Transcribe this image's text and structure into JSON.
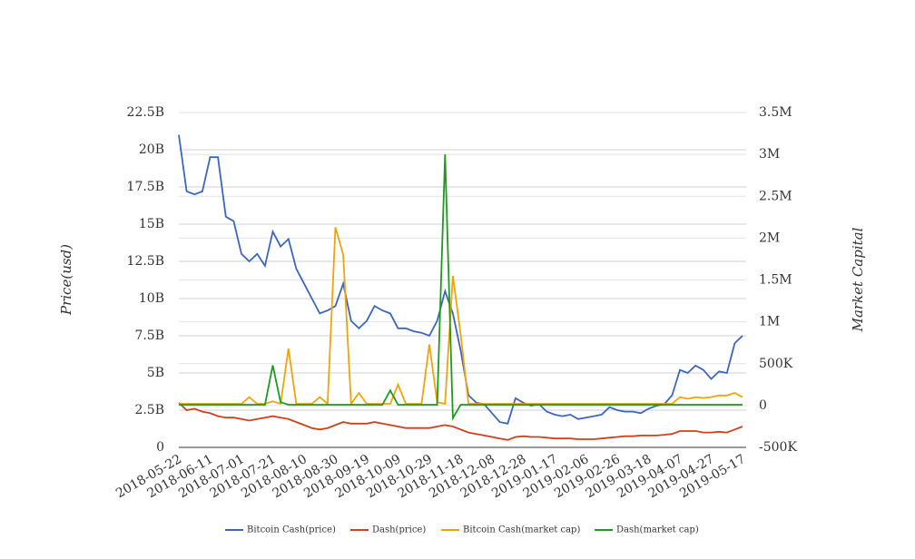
{
  "chart_data": {
    "type": "line",
    "y_label": "Price(usd)",
    "y2_label": "Market Capital",
    "x": [
      "2018-05-22",
      "2018-05-27",
      "2018-06-01",
      "2018-06-06",
      "2018-06-11",
      "2018-06-16",
      "2018-06-21",
      "2018-06-26",
      "2018-07-01",
      "2018-07-06",
      "2018-07-11",
      "2018-07-16",
      "2018-07-21",
      "2018-07-26",
      "2018-07-31",
      "2018-08-05",
      "2018-08-10",
      "2018-08-15",
      "2018-08-20",
      "2018-08-25",
      "2018-08-30",
      "2018-09-04",
      "2018-09-09",
      "2018-09-14",
      "2018-09-19",
      "2018-09-24",
      "2018-09-29",
      "2018-10-04",
      "2018-10-09",
      "2018-10-14",
      "2018-10-19",
      "2018-10-24",
      "2018-10-29",
      "2018-11-03",
      "2018-11-08",
      "2018-11-13",
      "2018-11-18",
      "2018-11-23",
      "2018-11-28",
      "2018-12-03",
      "2018-12-08",
      "2018-12-13",
      "2018-12-18",
      "2018-12-23",
      "2018-12-28",
      "2019-01-02",
      "2019-01-07",
      "2019-01-12",
      "2019-01-17",
      "2019-01-22",
      "2019-01-27",
      "2019-02-01",
      "2019-02-06",
      "2019-02-11",
      "2019-02-16",
      "2019-02-21",
      "2019-02-26",
      "2019-03-03",
      "2019-03-08",
      "2019-03-13",
      "2019-03-18",
      "2019-03-23",
      "2019-03-28",
      "2019-04-02",
      "2019-04-07",
      "2019-04-12",
      "2019-04-17",
      "2019-04-22",
      "2019-04-27",
      "2019-05-02",
      "2019-05-07",
      "2019-05-12",
      "2019-05-17"
    ],
    "xticks": [
      "2018-05-22",
      "2018-06-11",
      "2018-07-01",
      "2018-07-21",
      "2018-08-10",
      "2018-08-30",
      "2018-09-19",
      "2018-10-09",
      "2018-10-29",
      "2018-11-18",
      "2018-12-08",
      "2018-12-28",
      "2019-01-17",
      "2019-02-06",
      "2019-02-26",
      "2019-03-18",
      "2019-04-07",
      "2019-04-27",
      "2019-05-17"
    ],
    "ylim": [
      0,
      22500000000
    ],
    "yticks": [
      0,
      {
        "value": 2500000000,
        "label": "2.5B"
      },
      {
        "value": 5000000000,
        "label": "5B"
      },
      {
        "value": 7500000000,
        "label": "7.5B"
      },
      {
        "value": 10000000000,
        "label": "10B"
      },
      {
        "value": 12500000000,
        "label": "12.5B"
      },
      {
        "value": 15000000000,
        "label": "15B"
      },
      {
        "value": 17500000000,
        "label": "17.5B"
      },
      {
        "value": 20000000000,
        "label": "20B"
      },
      {
        "value": 22500000000,
        "label": "22.5B"
      }
    ],
    "y2lim": [
      -500000,
      3500000
    ],
    "y2ticks": [
      {
        "value": -500000,
        "label": "-500K"
      },
      0,
      {
        "value": 500000,
        "label": "500K"
      },
      {
        "value": 1000000,
        "label": "1M"
      },
      {
        "value": 1500000,
        "label": "1.5M"
      },
      {
        "value": 2000000,
        "label": "2M"
      },
      {
        "value": 2500000,
        "label": "2.5M"
      },
      {
        "value": 3000000,
        "label": "3M"
      },
      {
        "value": 3500000,
        "label": "3.5M"
      }
    ],
    "grid": true,
    "series": [
      {
        "name": "Bitcoin Cash(price)",
        "color": "#3a66c0",
        "values": [
          21000000000,
          17200000000,
          17000000000,
          17200000000,
          19500000000,
          19500000000,
          15500000000,
          15200000000,
          13000000000,
          12500000000,
          13000000000,
          12200000000,
          14500000000,
          13500000000,
          14000000000,
          12000000000,
          11000000000,
          10000000000,
          9000000000,
          9200000000,
          9500000000,
          11000000000,
          8500000000,
          8000000000,
          8500000000,
          9500000000,
          9200000000,
          9000000000,
          8000000000,
          8000000000,
          7800000000,
          7700000000,
          7500000000,
          8500000000,
          10500000000,
          9000000000,
          6500000000,
          3500000000,
          3000000000,
          2900000000,
          2300000000,
          1700000000,
          1600000000,
          3300000000,
          3000000000,
          2800000000,
          2900000000,
          2400000000,
          2200000000,
          2100000000,
          2200000000,
          1900000000,
          2000000000,
          2100000000,
          2200000000,
          2700000000,
          2500000000,
          2400000000,
          2400000000,
          2300000000,
          2600000000,
          2800000000,
          2900000000,
          3500000000,
          5200000000,
          5000000000,
          5500000000,
          5200000000,
          4600000000,
          5100000000,
          5000000000,
          7000000000,
          7500000000
        ]
      },
      {
        "name": "Dash(price)",
        "color": "#d0401a",
        "values": [
          3000000000,
          2500000000,
          2600000000,
          2400000000,
          2300000000,
          2100000000,
          2000000000,
          2000000000,
          1900000000,
          1800000000,
          1900000000,
          2000000000,
          2100000000,
          2000000000,
          1900000000,
          1700000000,
          1500000000,
          1300000000,
          1200000000,
          1300000000,
          1500000000,
          1700000000,
          1600000000,
          1600000000,
          1600000000,
          1700000000,
          1600000000,
          1500000000,
          1400000000,
          1300000000,
          1300000000,
          1300000000,
          1300000000,
          1400000000,
          1500000000,
          1400000000,
          1200000000,
          1000000000,
          900000000,
          800000000,
          700000000,
          600000000,
          500000000,
          700000000,
          750000000,
          700000000,
          700000000,
          650000000,
          600000000,
          600000000,
          600000000,
          550000000,
          550000000,
          550000000,
          600000000,
          650000000,
          700000000,
          750000000,
          750000000,
          800000000,
          800000000,
          800000000,
          850000000,
          900000000,
          1100000000,
          1100000000,
          1100000000,
          1000000000,
          1000000000,
          1050000000,
          1000000000,
          1200000000,
          1400000000
        ]
      },
      {
        "name": "Bitcoin Cash(market cap)",
        "color": "#f0a30a",
        "axis": "y2",
        "values": [
          20000,
          20000,
          20000,
          20000,
          20000,
          20000,
          20000,
          20000,
          20000,
          100000,
          20000,
          20000,
          50000,
          20000,
          680000,
          20000,
          20000,
          20000,
          100000,
          20000,
          2130000,
          1800000,
          20000,
          150000,
          20000,
          20000,
          20000,
          20000,
          250000,
          20000,
          20000,
          20000,
          730000,
          40000,
          20000,
          1550000,
          850000,
          20000,
          20000,
          20000,
          20000,
          20000,
          20000,
          20000,
          20000,
          20000,
          20000,
          20000,
          20000,
          20000,
          20000,
          20000,
          20000,
          20000,
          20000,
          20000,
          20000,
          20000,
          20000,
          20000,
          20000,
          20000,
          20000,
          20000,
          100000,
          80000,
          100000,
          90000,
          100000,
          120000,
          120000,
          150000,
          100000
        ]
      },
      {
        "name": "Dash(market cap)",
        "color": "#1e9a1e",
        "axis": "y2",
        "values": [
          10000,
          10000,
          10000,
          10000,
          10000,
          10000,
          10000,
          10000,
          10000,
          10000,
          10000,
          10000,
          480000,
          40000,
          10000,
          10000,
          10000,
          10000,
          10000,
          10000,
          10000,
          10000,
          10000,
          10000,
          10000,
          10000,
          10000,
          180000,
          10000,
          10000,
          10000,
          10000,
          10000,
          10000,
          3000000,
          -150000,
          10000,
          10000,
          10000,
          10000,
          10000,
          10000,
          10000,
          10000,
          10000,
          10000,
          10000,
          10000,
          10000,
          10000,
          10000,
          10000,
          10000,
          10000,
          10000,
          10000,
          10000,
          10000,
          10000,
          10000,
          10000,
          10000,
          10000,
          10000,
          10000,
          10000,
          10000,
          10000,
          10000,
          10000,
          10000,
          10000,
          10000
        ]
      }
    ]
  }
}
